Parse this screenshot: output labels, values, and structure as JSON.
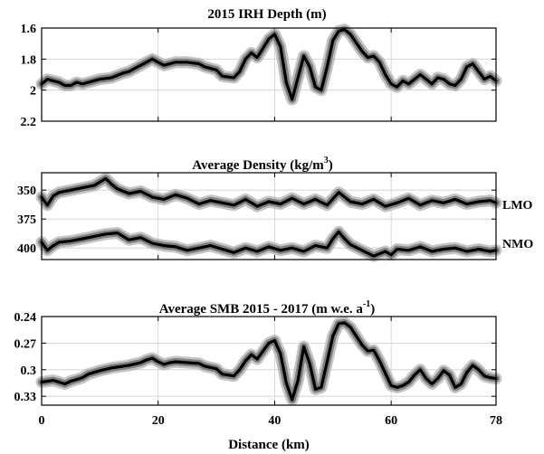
{
  "chart_data": [
    {
      "type": "line",
      "title_text": "2015 IRH Depth (m)",
      "title_prefix": "",
      "title_sup": "",
      "title_suffix": "",
      "ylim": [
        1.6,
        2.2
      ],
      "y_inverted": true,
      "yticks": [
        1.6,
        1.8,
        2.0,
        2.2
      ],
      "ytick_labels": [
        "1.6",
        "1.8",
        "2",
        "2.2"
      ],
      "xlim": [
        0,
        78
      ],
      "xticks": [
        0,
        20,
        40,
        60,
        78
      ],
      "grid": true,
      "series": [
        {
          "name": "",
          "x": [
            0,
            1,
            2,
            3,
            4,
            5,
            6,
            7,
            8,
            10,
            12,
            14,
            15,
            17,
            18,
            19,
            20,
            21,
            22,
            23,
            25,
            27,
            28,
            30,
            31,
            33,
            34,
            35,
            36,
            37,
            38,
            39,
            40,
            41,
            42,
            43,
            44,
            45,
            46,
            47,
            48,
            49,
            50,
            51,
            52,
            53,
            55,
            56,
            57,
            58,
            59,
            60,
            61,
            62,
            63,
            64,
            65,
            66,
            67,
            68,
            69,
            70,
            71,
            72,
            73,
            74,
            75,
            76,
            77,
            78
          ],
          "y": [
            1.96,
            1.93,
            1.94,
            1.95,
            1.97,
            1.97,
            1.95,
            1.96,
            1.95,
            1.93,
            1.92,
            1.89,
            1.88,
            1.84,
            1.82,
            1.8,
            1.82,
            1.84,
            1.83,
            1.82,
            1.82,
            1.83,
            1.85,
            1.87,
            1.91,
            1.92,
            1.88,
            1.8,
            1.76,
            1.79,
            1.73,
            1.67,
            1.64,
            1.72,
            1.95,
            2.06,
            1.92,
            1.78,
            1.85,
            1.98,
            2.0,
            1.85,
            1.68,
            1.62,
            1.61,
            1.64,
            1.75,
            1.79,
            1.78,
            1.82,
            1.9,
            1.96,
            1.98,
            1.94,
            1.96,
            1.93,
            1.9,
            1.93,
            1.96,
            1.92,
            1.93,
            1.96,
            1.97,
            1.93,
            1.85,
            1.83,
            1.88,
            1.93,
            1.91,
            1.94
          ]
        }
      ]
    },
    {
      "type": "line",
      "title_text": "Average Density (kg/m3)",
      "title_prefix": "Average Density (kg/m",
      "title_sup": "3",
      "title_suffix": ")",
      "ylim": [
        335,
        410
      ],
      "y_inverted": true,
      "yticks": [
        350,
        375,
        400
      ],
      "ytick_labels": [
        "350",
        "375",
        "400"
      ],
      "xlim": [
        0,
        78
      ],
      "xticks": [
        0,
        20,
        40,
        60,
        78
      ],
      "grid": true,
      "series": [
        {
          "name": "LMO",
          "x": [
            0,
            1,
            2,
            3,
            5,
            7,
            9,
            10,
            11,
            12,
            13,
            15,
            17,
            19,
            21,
            23,
            25,
            27,
            29,
            31,
            33,
            35,
            37,
            39,
            41,
            43,
            45,
            47,
            49,
            51,
            53,
            55,
            57,
            59,
            61,
            63,
            65,
            67,
            69,
            71,
            73,
            75,
            77,
            78
          ],
          "y": [
            356,
            363,
            355,
            352,
            350,
            348,
            346,
            343,
            340,
            345,
            349,
            353,
            351,
            356,
            358,
            354,
            357,
            362,
            359,
            361,
            363,
            358,
            364,
            360,
            362,
            357,
            362,
            358,
            363,
            352,
            360,
            362,
            358,
            364,
            361,
            357,
            363,
            359,
            361,
            358,
            362,
            360,
            359,
            361
          ]
        },
        {
          "name": "NMO",
          "x": [
            0,
            1,
            2,
            3,
            5,
            7,
            9,
            11,
            13,
            15,
            17,
            19,
            21,
            23,
            25,
            27,
            29,
            31,
            33,
            35,
            37,
            39,
            41,
            43,
            45,
            47,
            49,
            50,
            51,
            52,
            53,
            55,
            57,
            59,
            60,
            61,
            63,
            65,
            67,
            69,
            71,
            73,
            75,
            77,
            78
          ],
          "y": [
            395,
            402,
            398,
            395,
            394,
            392,
            390,
            388,
            387,
            393,
            391,
            396,
            398,
            399,
            402,
            400,
            398,
            401,
            404,
            400,
            403,
            399,
            402,
            400,
            403,
            398,
            400,
            392,
            386,
            392,
            397,
            402,
            407,
            403,
            406,
            401,
            402,
            399,
            403,
            401,
            400,
            403,
            401,
            403,
            402
          ]
        }
      ]
    },
    {
      "type": "line",
      "title_text": "Average SMB 2015 - 2017 (m w.e. a-1)",
      "title_prefix": "Average SMB 2015 - 2017 (m w.e. a",
      "title_sup": "-1",
      "title_suffix": ")",
      "ylim": [
        0.24,
        0.34
      ],
      "y_inverted": true,
      "yticks": [
        0.24,
        0.27,
        0.3,
        0.33
      ],
      "ytick_labels": [
        "0.24",
        "0.27",
        "0.3",
        "0.33"
      ],
      "xlim": [
        0,
        78
      ],
      "xticks": [
        0,
        20,
        40,
        60,
        78
      ],
      "grid": true,
      "series": [
        {
          "name": "",
          "x": [
            0,
            1,
            2,
            3,
            4,
            5,
            6,
            7,
            8,
            10,
            12,
            14,
            15,
            17,
            18,
            19,
            20,
            21,
            22,
            23,
            25,
            27,
            28,
            30,
            31,
            33,
            34,
            35,
            36,
            37,
            38,
            39,
            40,
            41,
            42,
            43,
            44,
            45,
            46,
            47,
            48,
            49,
            50,
            51,
            52,
            53,
            55,
            56,
            57,
            58,
            59,
            60,
            61,
            62,
            63,
            64,
            65,
            66,
            67,
            68,
            69,
            70,
            71,
            72,
            73,
            74,
            75,
            76,
            77,
            78
          ],
          "y": [
            0.314,
            0.313,
            0.312,
            0.314,
            0.316,
            0.313,
            0.311,
            0.309,
            0.305,
            0.301,
            0.298,
            0.296,
            0.295,
            0.292,
            0.289,
            0.287,
            0.291,
            0.294,
            0.292,
            0.291,
            0.292,
            0.293,
            0.296,
            0.299,
            0.305,
            0.307,
            0.3,
            0.29,
            0.283,
            0.288,
            0.279,
            0.27,
            0.267,
            0.282,
            0.315,
            0.334,
            0.312,
            0.274,
            0.293,
            0.322,
            0.32,
            0.291,
            0.262,
            0.248,
            0.247,
            0.252,
            0.272,
            0.279,
            0.278,
            0.29,
            0.304,
            0.318,
            0.32,
            0.318,
            0.314,
            0.306,
            0.3,
            0.31,
            0.316,
            0.31,
            0.301,
            0.306,
            0.32,
            0.316,
            0.303,
            0.295,
            0.3,
            0.307,
            0.309,
            0.31
          ]
        }
      ]
    }
  ],
  "x_axis": {
    "label": "Distance (km)",
    "tick_labels": [
      "0",
      "20",
      "40",
      "60",
      "78"
    ]
  }
}
